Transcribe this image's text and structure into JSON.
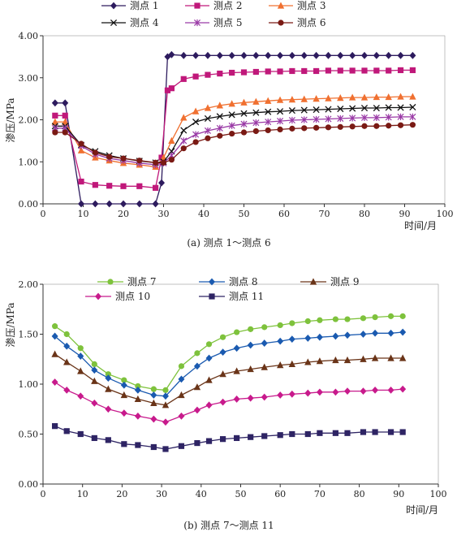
{
  "chart_data": [
    {
      "type": "line",
      "caption": "(a) 测点 1～测点 6",
      "xlabel": "时间/月",
      "ylabel": "渗压/MPa",
      "xlim": [
        0,
        100
      ],
      "ylim": [
        0,
        4
      ],
      "x_ticks": [
        "0",
        "10",
        "20",
        "30",
        "40",
        "50",
        "60",
        "70",
        "80",
        "90",
        "100"
      ],
      "y_ticks": [
        "0.00",
        "1.00",
        "2.00",
        "3.00",
        "4.00"
      ],
      "grid": false,
      "legend": "top",
      "series": [
        {
          "name": "测点 1",
          "color": "#2d1b5e",
          "marker": "diamond",
          "x": [
            3,
            5.5,
            9.5,
            13,
            16.5,
            20,
            24,
            28,
            29.5,
            31,
            32,
            35,
            38,
            41,
            44,
            47,
            50,
            53,
            56,
            59,
            62,
            65,
            68,
            71,
            74,
            77,
            80,
            83,
            86,
            89,
            92
          ],
          "y": [
            2.4,
            2.4,
            0.0,
            0.0,
            0.0,
            0.0,
            0.0,
            0.0,
            0.5,
            3.5,
            3.55,
            3.53,
            3.53,
            3.53,
            3.53,
            3.53,
            3.53,
            3.53,
            3.53,
            3.53,
            3.53,
            3.53,
            3.53,
            3.53,
            3.53,
            3.53,
            3.53,
            3.53,
            3.53,
            3.53,
            3.53
          ]
        },
        {
          "name": "测点 2",
          "color": "#c0187a",
          "marker": "square",
          "x": [
            3,
            5.5,
            9.5,
            13,
            16.5,
            20,
            24,
            28,
            29.5,
            31,
            32,
            35,
            38,
            41,
            44,
            47,
            50,
            53,
            56,
            59,
            62,
            65,
            68,
            71,
            74,
            77,
            80,
            83,
            86,
            89,
            92
          ],
          "y": [
            2.1,
            2.1,
            0.53,
            0.45,
            0.43,
            0.42,
            0.42,
            0.38,
            1.1,
            2.7,
            2.75,
            2.97,
            3.03,
            3.07,
            3.1,
            3.12,
            3.13,
            3.14,
            3.15,
            3.15,
            3.16,
            3.16,
            3.16,
            3.17,
            3.17,
            3.17,
            3.17,
            3.17,
            3.17,
            3.18,
            3.18
          ]
        },
        {
          "name": "测点 3",
          "color": "#f07030",
          "marker": "triangle",
          "x": [
            3,
            5.5,
            9.5,
            13,
            16.5,
            20,
            24,
            28,
            30,
            32,
            35,
            38,
            41,
            44,
            47,
            50,
            53,
            56,
            59,
            62,
            65,
            68,
            71,
            74,
            77,
            80,
            83,
            86,
            89,
            92
          ],
          "y": [
            1.95,
            1.95,
            1.27,
            1.1,
            1.03,
            0.97,
            0.93,
            0.88,
            1.1,
            1.5,
            2.05,
            2.2,
            2.28,
            2.34,
            2.38,
            2.41,
            2.43,
            2.45,
            2.47,
            2.48,
            2.49,
            2.5,
            2.51,
            2.52,
            2.53,
            2.53,
            2.54,
            2.54,
            2.55,
            2.55
          ]
        },
        {
          "name": "测点 4",
          "color": "#111111",
          "marker": "x",
          "x": [
            3,
            5.5,
            9.5,
            13,
            16.5,
            20,
            24,
            28,
            30,
            32,
            35,
            38,
            41,
            44,
            47,
            50,
            53,
            56,
            59,
            62,
            65,
            68,
            71,
            74,
            77,
            80,
            83,
            86,
            89,
            92
          ],
          "y": [
            1.85,
            1.85,
            1.4,
            1.25,
            1.15,
            1.08,
            1.02,
            0.98,
            1.0,
            1.25,
            1.75,
            1.95,
            2.03,
            2.08,
            2.12,
            2.15,
            2.17,
            2.19,
            2.2,
            2.22,
            2.23,
            2.24,
            2.25,
            2.26,
            2.27,
            2.28,
            2.28,
            2.29,
            2.29,
            2.3
          ]
        },
        {
          "name": "测点 5",
          "color": "#9a3aa6",
          "marker": "star",
          "x": [
            3,
            5.5,
            9.5,
            13,
            16.5,
            20,
            24,
            28,
            30,
            32,
            35,
            38,
            41,
            44,
            47,
            50,
            53,
            56,
            59,
            62,
            65,
            68,
            71,
            74,
            77,
            80,
            83,
            86,
            89,
            92
          ],
          "y": [
            1.8,
            1.8,
            1.38,
            1.18,
            1.08,
            1.03,
            0.97,
            0.93,
            0.97,
            1.15,
            1.5,
            1.65,
            1.74,
            1.8,
            1.86,
            1.9,
            1.93,
            1.95,
            1.97,
            1.99,
            2.0,
            2.01,
            2.02,
            2.03,
            2.04,
            2.05,
            2.05,
            2.06,
            2.07,
            2.07
          ]
        },
        {
          "name": "测点 6",
          "color": "#7a1a14",
          "marker": "circle",
          "x": [
            3,
            5.5,
            9.5,
            13,
            16.5,
            20,
            24,
            28,
            30,
            32,
            35,
            38,
            41,
            44,
            47,
            50,
            53,
            56,
            59,
            62,
            65,
            68,
            71,
            74,
            77,
            80,
            83,
            86,
            89,
            92
          ],
          "y": [
            1.7,
            1.7,
            1.43,
            1.22,
            1.12,
            1.08,
            1.03,
            0.98,
            0.98,
            1.05,
            1.32,
            1.47,
            1.56,
            1.62,
            1.67,
            1.7,
            1.73,
            1.75,
            1.77,
            1.79,
            1.8,
            1.81,
            1.82,
            1.83,
            1.84,
            1.85,
            1.85,
            1.86,
            1.87,
            1.88
          ]
        }
      ]
    },
    {
      "type": "line",
      "caption": "(b) 测点 7～测点 11",
      "xlabel": "时间/月",
      "ylabel": "渗压/MPa",
      "xlim": [
        0,
        100
      ],
      "ylim": [
        0,
        2
      ],
      "x_ticks": [
        "0",
        "10",
        "20",
        "30",
        "40",
        "50",
        "60",
        "70",
        "80",
        "90",
        "100"
      ],
      "y_ticks": [
        "0.00",
        "0.50",
        "1.00",
        "1.50",
        "2.00"
      ],
      "grid": false,
      "legend": "top",
      "series": [
        {
          "name": "测点 7",
          "color": "#7ec23c",
          "marker": "circle",
          "x": [
            3,
            6,
            9.5,
            13,
            16.5,
            20.5,
            24,
            28,
            31,
            35,
            39,
            42,
            45.5,
            49,
            52.5,
            56,
            60,
            63,
            67,
            70,
            74,
            77,
            81,
            84,
            88,
            91
          ],
          "y": [
            1.58,
            1.5,
            1.36,
            1.2,
            1.1,
            1.04,
            0.98,
            0.95,
            0.94,
            1.18,
            1.31,
            1.4,
            1.47,
            1.52,
            1.55,
            1.57,
            1.59,
            1.61,
            1.63,
            1.64,
            1.65,
            1.65,
            1.66,
            1.67,
            1.68,
            1.68
          ]
        },
        {
          "name": "测点 8",
          "color": "#1a5ab0",
          "marker": "diamond",
          "x": [
            3,
            6,
            9.5,
            13,
            16.5,
            20.5,
            24,
            28,
            31,
            35,
            39,
            42,
            45.5,
            49,
            52.5,
            56,
            60,
            63,
            67,
            70,
            74,
            77,
            81,
            84,
            88,
            91
          ],
          "y": [
            1.48,
            1.38,
            1.28,
            1.14,
            1.06,
            0.99,
            0.94,
            0.89,
            0.88,
            1.05,
            1.18,
            1.26,
            1.32,
            1.36,
            1.39,
            1.41,
            1.43,
            1.45,
            1.46,
            1.47,
            1.48,
            1.49,
            1.5,
            1.51,
            1.51,
            1.52
          ]
        },
        {
          "name": "测点 9",
          "color": "#6a3418",
          "marker": "triangle",
          "x": [
            3,
            6,
            9.5,
            13,
            16.5,
            20.5,
            24,
            28,
            31,
            35,
            39,
            42,
            45.5,
            49,
            52.5,
            56,
            60,
            63,
            67,
            70,
            74,
            77,
            81,
            84,
            88,
            91
          ],
          "y": [
            1.3,
            1.22,
            1.13,
            1.03,
            0.95,
            0.89,
            0.85,
            0.81,
            0.79,
            0.89,
            0.97,
            1.04,
            1.1,
            1.13,
            1.15,
            1.17,
            1.19,
            1.2,
            1.22,
            1.23,
            1.24,
            1.24,
            1.25,
            1.26,
            1.26,
            1.26
          ]
        },
        {
          "name": "测点 10",
          "color": "#c81a8c",
          "marker": "diamond",
          "x": [
            3,
            6,
            9.5,
            13,
            16.5,
            20.5,
            24,
            28,
            31,
            35,
            39,
            42,
            45.5,
            49,
            52.5,
            56,
            60,
            63,
            67,
            70,
            74,
            77,
            81,
            84,
            88,
            91
          ],
          "y": [
            1.02,
            0.94,
            0.88,
            0.81,
            0.75,
            0.71,
            0.68,
            0.65,
            0.62,
            0.68,
            0.74,
            0.79,
            0.82,
            0.85,
            0.86,
            0.87,
            0.89,
            0.9,
            0.91,
            0.92,
            0.92,
            0.93,
            0.93,
            0.94,
            0.94,
            0.95
          ]
        },
        {
          "name": "测点 11",
          "color": "#2e2464",
          "marker": "square",
          "x": [
            3,
            6,
            9.5,
            13,
            16.5,
            20.5,
            24,
            28,
            31,
            35,
            39,
            42,
            45.5,
            49,
            52.5,
            56,
            60,
            63,
            67,
            70,
            74,
            77,
            81,
            84,
            88,
            91
          ],
          "y": [
            0.58,
            0.53,
            0.5,
            0.46,
            0.44,
            0.4,
            0.39,
            0.37,
            0.35,
            0.38,
            0.41,
            0.43,
            0.45,
            0.46,
            0.47,
            0.48,
            0.49,
            0.5,
            0.5,
            0.51,
            0.51,
            0.51,
            0.52,
            0.52,
            0.52,
            0.52
          ]
        }
      ]
    }
  ]
}
